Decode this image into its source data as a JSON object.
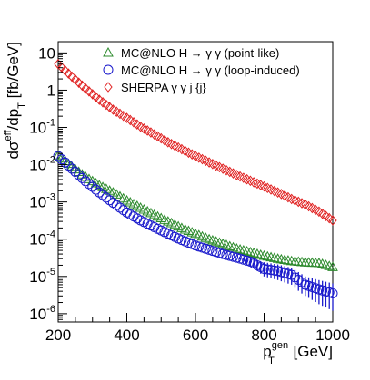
{
  "chart_data": {
    "type": "scatter",
    "xlabel": {
      "main": "p",
      "sub": "T",
      "sup": "gen",
      "unit": "[GeV]"
    },
    "ylabel": {
      "main": "dσ",
      "sup": "eff",
      "mid": "/dp",
      "sub": "T",
      "unit": "[fb/GeV]"
    },
    "xlim": [
      200,
      1000
    ],
    "ylim": [
      6e-07,
      20
    ],
    "yscale": "log",
    "grid": false,
    "legend_position": "top-right",
    "x_ticks": [
      {
        "value": 200,
        "label": "200"
      },
      {
        "value": 400,
        "label": "400"
      },
      {
        "value": 600,
        "label": "600"
      },
      {
        "value": 800,
        "label": "800"
      },
      {
        "value": 1000,
        "label": "1000"
      }
    ],
    "y_ticks": [
      {
        "value": 10,
        "base": "10",
        "exp": ""
      },
      {
        "value": 1,
        "base": "1",
        "exp": ""
      },
      {
        "value": 0.1,
        "base": "10",
        "exp": "-1"
      },
      {
        "value": 0.01,
        "base": "10",
        "exp": "-2"
      },
      {
        "value": 0.001,
        "base": "10",
        "exp": "-3"
      },
      {
        "value": 0.0001,
        "base": "10",
        "exp": "-4"
      },
      {
        "value": 1e-05,
        "base": "10",
        "exp": "-5"
      },
      {
        "value": 1e-06,
        "base": "10",
        "exp": "-6"
      }
    ],
    "series": [
      {
        "name": "MC@NLO H → γ γ (point-like)",
        "marker": "triangle",
        "color": "#2e8b2e",
        "x": [
          200,
          240,
          280,
          320,
          360,
          400,
          440,
          480,
          520,
          560,
          600,
          640,
          680,
          720,
          760,
          800,
          840,
          880,
          920,
          960,
          1000
        ],
        "y": [
          0.018,
          0.0088,
          0.0047,
          0.0028,
          0.0018,
          0.0011,
          0.0007,
          0.00045,
          0.0003,
          0.0002,
          0.00014,
          0.0001,
          7.5e-05,
          5.6e-05,
          4.5e-05,
          3.6e-05,
          3e-05,
          2.6e-05,
          2.4e-05,
          2.3e-05,
          1.8e-05
        ]
      },
      {
        "name": "MC@NLO H → γ γ (loop-induced)",
        "marker": "circle",
        "color": "#1a1acc",
        "x": [
          200,
          240,
          280,
          320,
          360,
          400,
          440,
          480,
          520,
          560,
          600,
          640,
          680,
          720,
          760,
          800,
          840,
          880,
          920,
          960,
          1000
        ],
        "y": [
          0.017,
          0.0078,
          0.0036,
          0.0018,
          0.00095,
          0.00052,
          0.00032,
          0.00021,
          0.00014,
          9.5e-05,
          6.8e-05,
          5.2e-05,
          4e-05,
          3.2e-05,
          2.5e-05,
          1.6e-05,
          1.4e-05,
          1.1e-05,
          6e-06,
          4.5e-06,
          3.5e-06
        ],
        "yerr_low": [
          0,
          0,
          0,
          0,
          0,
          0,
          0,
          0,
          0,
          0,
          0,
          0,
          0,
          0,
          6e-06,
          6e-06,
          6e-06,
          5e-06,
          3e-06,
          2.7e-06,
          2.3e-06
        ],
        "yerr_high": [
          0,
          0,
          0,
          0,
          0,
          0,
          0,
          0,
          0,
          0,
          0,
          0,
          0,
          0,
          8e-06,
          8e-06,
          7e-06,
          6e-06,
          4e-06,
          3.5e-06,
          3e-06
        ]
      },
      {
        "name": "SHERPA γ γ j {j}",
        "marker": "diamond",
        "color": "#e02020",
        "x": [
          200,
          240,
          280,
          320,
          360,
          400,
          440,
          480,
          520,
          560,
          600,
          640,
          680,
          720,
          760,
          800,
          840,
          880,
          920,
          960,
          1000
        ],
        "y": [
          5.0,
          2.3,
          1.1,
          0.55,
          0.3,
          0.18,
          0.105,
          0.065,
          0.04,
          0.026,
          0.017,
          0.0115,
          0.0078,
          0.0053,
          0.0037,
          0.0026,
          0.0018,
          0.0012,
          0.00085,
          0.00055,
          0.00032
        ]
      }
    ]
  }
}
